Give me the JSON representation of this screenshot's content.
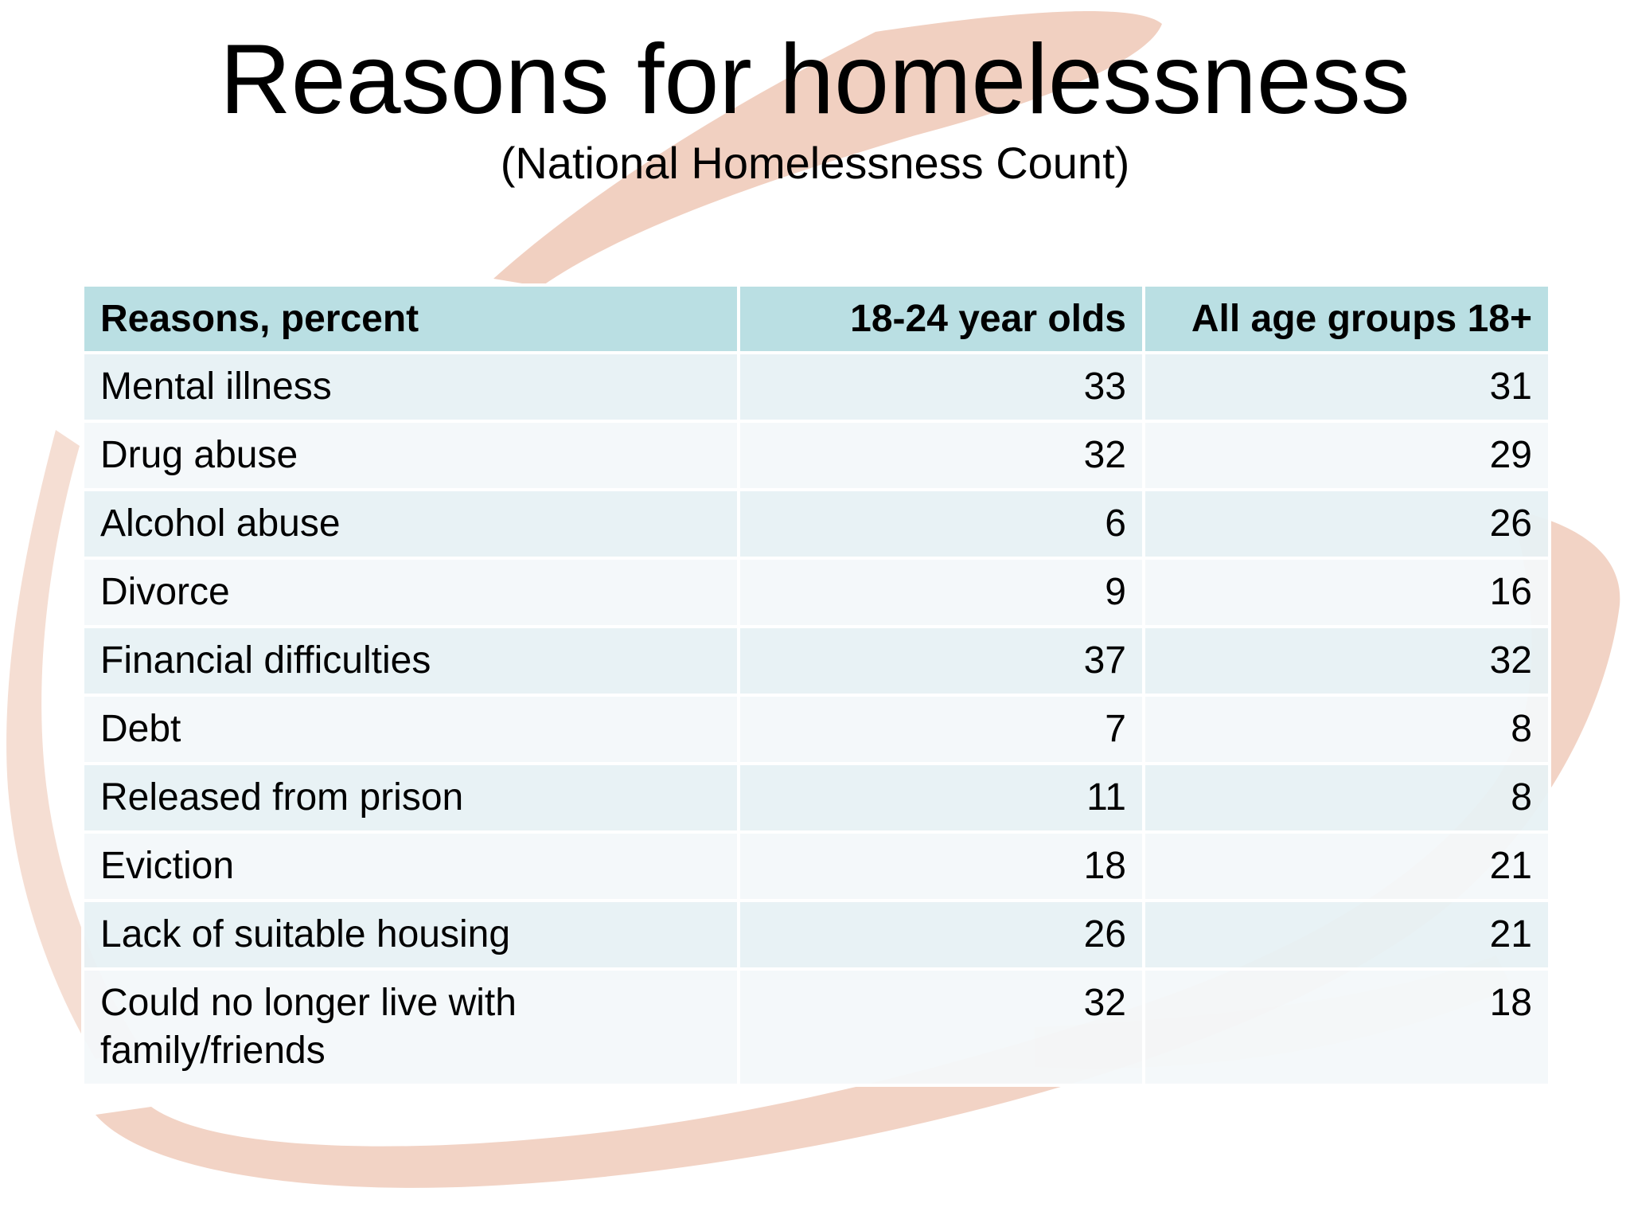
{
  "slide": {
    "title": "Reasons for homelessness",
    "subtitle": "(National Homelessness Count)"
  },
  "table": {
    "headers": [
      "Reasons, percent",
      "18-24 year olds",
      "All age groups 18+"
    ],
    "rows": [
      {
        "reason": "Mental illness",
        "age_18_24": "33",
        "all_18_plus": "31"
      },
      {
        "reason": "Drug abuse",
        "age_18_24": "32",
        "all_18_plus": "29"
      },
      {
        "reason": "Alcohol abuse",
        "age_18_24": "6",
        "all_18_plus": "26"
      },
      {
        "reason": "Divorce",
        "age_18_24": "9",
        "all_18_plus": "16"
      },
      {
        "reason": "Financial difficulties",
        "age_18_24": "37",
        "all_18_plus": "32"
      },
      {
        "reason": "Debt",
        "age_18_24": "7",
        "all_18_plus": "8"
      },
      {
        "reason": "Released from prison",
        "age_18_24": "11",
        "all_18_plus": "8"
      },
      {
        "reason": "Eviction",
        "age_18_24": "18",
        "all_18_plus": "21"
      },
      {
        "reason": "Lack of suitable housing",
        "age_18_24": "26",
        "all_18_plus": "21"
      },
      {
        "reason": "Could no longer live with family/friends",
        "age_18_24": "32",
        "all_18_plus": "18"
      }
    ]
  },
  "colors": {
    "header_fill": "#b7dee2",
    "row_fill_odd": "#e7f1f4",
    "row_fill_even": "#f3f8fa",
    "brush_stroke": "#efc8b6"
  }
}
